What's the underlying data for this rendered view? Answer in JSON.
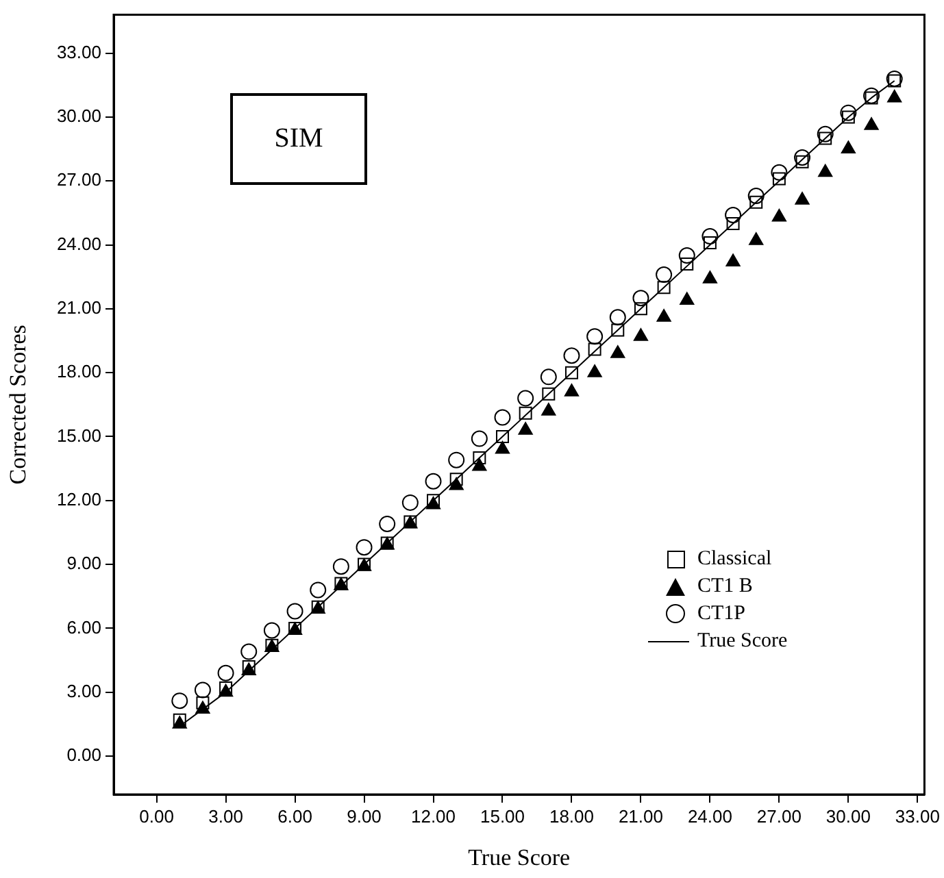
{
  "chart_data": {
    "type": "scatter",
    "xlabel": "True Score",
    "ylabel": "Corrected Scores",
    "annotations": [
      "SIM"
    ],
    "x": [
      1,
      2,
      3,
      4,
      5,
      6,
      7,
      8,
      9,
      10,
      11,
      12,
      13,
      14,
      15,
      16,
      17,
      18,
      19,
      20,
      21,
      22,
      23,
      24,
      25,
      26,
      27,
      28,
      29,
      30,
      31,
      32
    ],
    "series": [
      {
        "name": "Classical",
        "type": "scatter",
        "marker": "square",
        "color": "#000000",
        "values": [
          1.7,
          2.5,
          3.2,
          4.2,
          5.2,
          6.0,
          7.0,
          8.1,
          9.0,
          10.0,
          11.0,
          12.0,
          13.0,
          14.0,
          15.0,
          16.1,
          17.0,
          18.0,
          19.1,
          20.0,
          21.0,
          22.0,
          23.1,
          24.1,
          25.0,
          26.0,
          27.1,
          27.9,
          29.0,
          30.0,
          30.9,
          31.7
        ]
      },
      {
        "name": "CT1 B",
        "type": "scatter",
        "marker": "triangle",
        "color": "#000000",
        "values": [
          1.5,
          2.2,
          3.0,
          4.0,
          5.1,
          5.9,
          6.9,
          8.0,
          8.9,
          9.9,
          10.9,
          11.8,
          12.7,
          13.6,
          14.4,
          15.3,
          16.2,
          17.1,
          18.0,
          18.9,
          19.7,
          20.6,
          21.4,
          22.4,
          23.2,
          24.2,
          25.3,
          26.1,
          27.4,
          28.5,
          29.6,
          30.9
        ]
      },
      {
        "name": "CT1P",
        "type": "scatter",
        "marker": "circle",
        "color": "#000000",
        "values": [
          2.6,
          3.1,
          3.9,
          4.9,
          5.9,
          6.8,
          7.8,
          8.9,
          9.8,
          10.9,
          11.9,
          12.9,
          13.9,
          14.9,
          15.9,
          16.8,
          17.8,
          18.8,
          19.7,
          20.6,
          21.5,
          22.6,
          23.5,
          24.4,
          25.4,
          26.3,
          27.4,
          28.1,
          29.2,
          30.2,
          31.0,
          31.8
        ]
      },
      {
        "name": "True Score",
        "type": "line",
        "marker": "none",
        "line_style": "solid",
        "color": "#000000",
        "values": [
          1.4,
          2.2,
          3.0,
          4.0,
          5.0,
          6.0,
          7.0,
          8.0,
          9.0,
          10.0,
          11.0,
          12.0,
          13.0,
          14.0,
          15.0,
          16.0,
          17.0,
          18.0,
          19.0,
          20.0,
          21.0,
          22.0,
          23.0,
          24.0,
          25.0,
          26.0,
          27.0,
          28.0,
          29.0,
          30.0,
          30.9,
          31.7
        ]
      }
    ],
    "xlim": [
      -1.86,
      33.3
    ],
    "xticks": [
      {
        "value": 0,
        "label": "0.00"
      },
      {
        "value": 3,
        "label": "3.00"
      },
      {
        "value": 6,
        "label": "6.00"
      },
      {
        "value": 9,
        "label": "9.00"
      },
      {
        "value": 12,
        "label": "12.00"
      },
      {
        "value": 15,
        "label": "15.00"
      },
      {
        "value": 18,
        "label": "18.00"
      },
      {
        "value": 21,
        "label": "21.00"
      },
      {
        "value": 24,
        "label": "24.00"
      },
      {
        "value": 27,
        "label": "27.00"
      },
      {
        "value": 30,
        "label": "30.00"
      },
      {
        "value": 33,
        "label": "33.00"
      }
    ],
    "ylim": [
      -1.8,
      34.8
    ],
    "yticks": [
      {
        "value": 0,
        "label": "0.00"
      },
      {
        "value": 3,
        "label": "3.00"
      },
      {
        "value": 6,
        "label": "6.00"
      },
      {
        "value": 9,
        "label": "9.00"
      },
      {
        "value": 12,
        "label": "12.00"
      },
      {
        "value": 15,
        "label": "15.00"
      },
      {
        "value": 18,
        "label": "18.00"
      },
      {
        "value": 21,
        "label": "21.00"
      },
      {
        "value": 24,
        "label": "24.00"
      },
      {
        "value": 27,
        "label": "27.00"
      },
      {
        "value": 30,
        "label": "30.00"
      },
      {
        "value": 33,
        "label": "33.00"
      }
    ],
    "grid": false,
    "legend": "bottom right"
  }
}
